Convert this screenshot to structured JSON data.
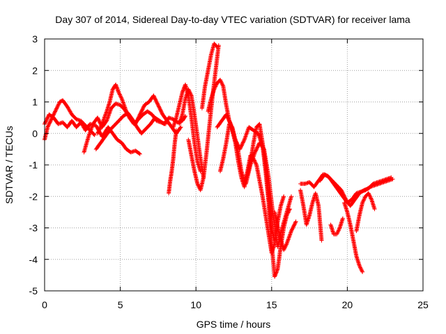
{
  "chart_data": {
    "type": "scatter",
    "title": "Day 307 of 2014, Sidereal Day-to-day VTEC variation (SDTVAR) for receiver lama",
    "xlabel": "GPS time / hours",
    "ylabel": "SDTVAR / TECUs",
    "xlim": [
      0,
      25
    ],
    "ylim": [
      -5,
      3
    ],
    "grid": true,
    "marker": "+",
    "x_ticks": [
      0,
      5,
      10,
      15,
      20,
      25
    ],
    "y_ticks": [
      -5,
      -4,
      -3,
      -2,
      -1,
      0,
      1,
      2,
      3
    ],
    "x_tick_labels": [
      "0",
      "5",
      "10",
      "15",
      "20",
      "25"
    ],
    "y_tick_labels": [
      "-5",
      "-4",
      "-3",
      "-2",
      "-1",
      "0",
      "1",
      "2",
      "3"
    ],
    "series": [
      {
        "name": "SDTVAR",
        "color": "#ff0000",
        "tracks": [
          {
            "x": [
              0.0,
              0.3,
              0.6,
              0.9,
              1.2,
              1.5,
              1.8,
              2.1,
              2.4,
              2.7,
              3.0,
              3.4,
              3.8,
              4.2,
              4.5,
              4.8,
              5.1,
              5.4,
              5.7,
              6.0,
              6.3
            ],
            "y": [
              0.3,
              0.6,
              0.5,
              0.3,
              0.35,
              0.2,
              0.4,
              0.2,
              0.35,
              0.1,
              0.3,
              0.25,
              -0.1,
              0.2,
              0.0,
              -0.2,
              -0.3,
              -0.5,
              -0.6,
              -0.55,
              -0.65
            ]
          },
          {
            "x": [
              0.0,
              0.2,
              0.5,
              0.8,
              1.0,
              1.2,
              1.5,
              1.8,
              2.1,
              2.4,
              2.7,
              3.0,
              3.3
            ],
            "y": [
              -0.2,
              0.2,
              0.5,
              0.8,
              1.0,
              1.05,
              0.85,
              0.6,
              0.45,
              0.4,
              0.25,
              0.1,
              -0.05
            ]
          },
          {
            "x": [
              2.6,
              2.9,
              3.2,
              3.5,
              3.8,
              4.1,
              4.4,
              4.7,
              5.0,
              5.3,
              5.6,
              5.9,
              6.2,
              6.5,
              6.8,
              7.1,
              7.4,
              7.7,
              8.0
            ],
            "y": [
              -0.6,
              -0.1,
              0.3,
              0.5,
              0.2,
              0.4,
              0.8,
              0.95,
              0.9,
              0.75,
              0.5,
              0.3,
              0.45,
              0.6,
              0.7,
              0.6,
              0.4,
              0.35,
              0.3
            ]
          },
          {
            "x": [
              3.5,
              3.8,
              4.1,
              4.3,
              4.5,
              4.7,
              4.9,
              5.1,
              5.4,
              5.7,
              6.0,
              6.3,
              6.6,
              6.9,
              7.2,
              7.5,
              7.8,
              8.1,
              8.4,
              8.7,
              9.0
            ],
            "y": [
              0.0,
              0.3,
              0.7,
              1.0,
              1.4,
              1.55,
              1.3,
              1.1,
              0.7,
              0.5,
              0.3,
              0.6,
              0.9,
              1.0,
              1.2,
              0.9,
              0.6,
              0.4,
              0.2,
              0.0,
              0.2
            ]
          },
          {
            "x": [
              3.4,
              3.7,
              4.0,
              4.3,
              4.6,
              4.9,
              5.2,
              5.5,
              5.8,
              6.1,
              6.4,
              6.7,
              7.0,
              7.3,
              7.6,
              7.9,
              8.2,
              8.5,
              8.8,
              9.1,
              9.3
            ],
            "y": [
              -0.5,
              -0.3,
              -0.1,
              0.1,
              0.25,
              0.4,
              0.55,
              0.65,
              0.45,
              0.2,
              0.0,
              0.15,
              0.3,
              0.5,
              0.4,
              0.3,
              0.5,
              0.45,
              0.35,
              0.4,
              0.55
            ]
          },
          {
            "x": [
              8.2,
              8.3,
              8.4,
              8.5,
              8.6,
              8.7
            ],
            "y": [
              -1.9,
              -1.5,
              -1.2,
              -0.8,
              -0.3,
              0.1
            ]
          },
          {
            "x": [
              8.5,
              8.7,
              8.9,
              9.1,
              9.3,
              9.5,
              9.7,
              9.9,
              10.1,
              10.3
            ],
            "y": [
              0.2,
              0.5,
              0.9,
              1.3,
              1.55,
              1.2,
              0.5,
              -0.3,
              -0.9,
              -1.2
            ]
          },
          {
            "x": [
              8.9,
              9.1,
              9.3,
              9.5,
              9.7,
              9.9,
              10.1,
              10.3,
              10.5
            ],
            "y": [
              0.3,
              0.6,
              1.1,
              1.4,
              1.2,
              0.6,
              -0.1,
              -0.8,
              -1.4
            ]
          },
          {
            "x": [
              9.5,
              9.7,
              9.9,
              10.1,
              10.3,
              10.5,
              10.7,
              10.9,
              11.1,
              11.3,
              11.5
            ],
            "y": [
              -0.2,
              -0.7,
              -1.2,
              -1.6,
              -1.8,
              -1.4,
              -0.6,
              0.3,
              1.2,
              2.0,
              2.8
            ]
          },
          {
            "x": [
              10.4,
              10.6,
              10.8,
              11.0,
              11.2,
              11.4
            ],
            "y": [
              0.8,
              1.5,
              2.0,
              2.5,
              2.85,
              2.75
            ]
          },
          {
            "x": [
              10.8,
              11.0,
              11.2,
              11.4,
              11.6,
              11.8,
              12.0,
              12.2,
              12.4,
              12.6,
              12.8,
              13.0,
              13.2,
              13.4,
              13.6,
              13.8,
              14.0,
              14.2,
              14.4,
              14.6,
              14.8,
              15.0,
              15.2,
              15.4,
              15.6,
              15.8
            ],
            "y": [
              0.7,
              1.1,
              1.4,
              1.6,
              1.7,
              1.5,
              0.9,
              0.4,
              0.1,
              -0.3,
              -0.9,
              -1.4,
              -1.7,
              -1.2,
              -0.7,
              -0.8,
              -1.0,
              -1.5,
              -2.0,
              -2.6,
              -3.2,
              -3.8,
              -3.5,
              -2.8,
              -2.3,
              -2.0
            ]
          },
          {
            "x": [
              11.4,
              11.7,
              12.0,
              12.3,
              12.6,
              12.9,
              13.2,
              13.5,
              13.8,
              14.1,
              14.4,
              14.6,
              14.8,
              15.0,
              15.2,
              15.4,
              15.6,
              15.8,
              16.0,
              16.2
            ],
            "y": [
              0.2,
              0.4,
              0.6,
              0.3,
              -0.2,
              -0.5,
              -0.2,
              0.2,
              0.1,
              0.0,
              -0.4,
              -1.2,
              -2.2,
              -3.5,
              -4.55,
              -4.3,
              -3.6,
              -3.0,
              -2.6,
              -2.4
            ]
          },
          {
            "x": [
              11.6,
              11.8,
              12.0,
              12.2,
              12.4,
              12.6,
              12.8,
              13.0,
              13.2,
              13.4,
              13.6,
              13.8,
              14.0,
              14.2,
              14.4,
              14.6,
              14.8,
              15.0,
              15.2
            ],
            "y": [
              -1.2,
              -0.8,
              -0.3,
              0.3,
              0.2,
              -0.2,
              -0.6,
              -1.2,
              -1.5,
              -1.3,
              -0.9,
              -0.3,
              0.2,
              0.3,
              -0.3,
              -1.0,
              -2.0,
              -3.0,
              -3.4
            ]
          },
          {
            "x": [
              13.3,
              13.6,
              13.9,
              14.2,
              14.5,
              14.8,
              15.1,
              15.4,
              15.7,
              16.0,
              16.3
            ],
            "y": [
              -1.6,
              -1.0,
              -0.6,
              -0.3,
              -0.5,
              -1.4,
              -2.6,
              -3.6,
              -3.0,
              -2.5,
              -2.0
            ]
          },
          {
            "x": [
              15.2,
              15.5,
              15.8,
              16.0,
              16.3,
              16.6
            ],
            "y": [
              -2.5,
              -3.2,
              -3.7,
              -3.5,
              -3.1,
              -2.8
            ]
          },
          {
            "x": [
              16.9,
              17.2,
              17.5,
              17.8,
              18.1,
              18.4,
              18.7,
              19.0,
              19.3,
              19.6,
              19.9,
              20.2,
              20.5,
              20.8,
              21.1,
              21.4,
              21.7,
              22.0,
              22.3,
              22.6,
              22.9
            ],
            "y": [
              -1.6,
              -1.6,
              -1.55,
              -1.7,
              -1.5,
              -1.3,
              -1.35,
              -1.5,
              -1.65,
              -1.8,
              -2.1,
              -2.3,
              -2.1,
              -1.9,
              -1.8,
              -1.75,
              -1.6,
              -1.55,
              -1.5,
              -1.45,
              -1.4
            ]
          },
          {
            "x": [
              16.9,
              17.1,
              17.3,
              17.5,
              17.7,
              17.9,
              18.1,
              18.3
            ],
            "y": [
              -1.8,
              -2.3,
              -2.9,
              -2.6,
              -2.2,
              -1.9,
              -2.3,
              -3.4
            ]
          },
          {
            "x": [
              18.2,
              18.5,
              18.8,
              19.1,
              19.4,
              19.7,
              20.0,
              20.3,
              20.6,
              20.9,
              21.2,
              21.5,
              21.8,
              22.1,
              22.4,
              22.7,
              23.0
            ],
            "y": [
              -1.5,
              -1.3,
              -1.4,
              -1.6,
              -1.8,
              -2.0,
              -2.2,
              -2.1,
              -1.9,
              -1.85,
              -1.8,
              -1.7,
              -1.65,
              -1.6,
              -1.55,
              -1.5,
              -1.45
            ]
          },
          {
            "x": [
              18.9,
              19.1,
              19.3,
              19.5,
              19.7
            ],
            "y": [
              -2.9,
              -3.2,
              -3.2,
              -3.0,
              -2.7
            ]
          },
          {
            "x": [
              19.8,
              20.0,
              20.2,
              20.4,
              20.6,
              20.8,
              21.0
            ],
            "y": [
              -2.2,
              -2.5,
              -2.9,
              -3.4,
              -3.9,
              -4.2,
              -4.4
            ]
          },
          {
            "x": [
              20.6,
              20.8,
              21.0,
              21.2,
              21.4,
              21.6,
              21.8
            ],
            "y": [
              -3.1,
              -2.6,
              -2.2,
              -2.0,
              -1.9,
              -2.1,
              -2.4
            ]
          }
        ]
      }
    ]
  }
}
